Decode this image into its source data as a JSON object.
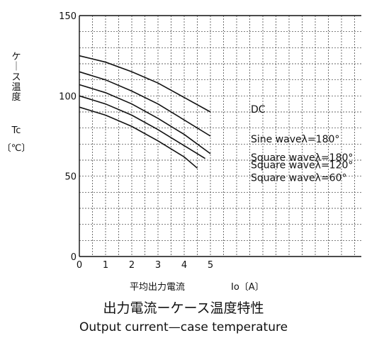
{
  "chart_data": {
    "type": "line",
    "xlabel_jp": "平均出力電流",
    "xlabel_io": "Io〔A〕",
    "ylabel_jp": [
      "ケ",
      "｜",
      "ス",
      "温",
      "度"
    ],
    "ylabel_sym": "Tc",
    "ylabel_unit": "〔℃〕",
    "caption_jp": "出力電流ーケース温度特性",
    "caption_en": "Output current—case temperature",
    "xlim": [
      0,
      5
    ],
    "ylim": [
      0,
      150
    ],
    "xticks": [
      "0",
      "1",
      "2",
      "3",
      "4",
      "5"
    ],
    "yticks": [
      "0",
      "50",
      "100",
      "150"
    ],
    "grid": true,
    "series": [
      {
        "name": "DC",
        "points": [
          [
            0,
            125
          ],
          [
            1,
            121
          ],
          [
            2,
            115
          ],
          [
            3,
            108
          ],
          [
            4,
            99
          ],
          [
            5,
            90
          ]
        ]
      },
      {
        "name": "Sine waveλ=180°",
        "points": [
          [
            0,
            115
          ],
          [
            1,
            110
          ],
          [
            2,
            103
          ],
          [
            3,
            95
          ],
          [
            4,
            85
          ],
          [
            5,
            75
          ]
        ]
      },
      {
        "name": "Square waveλ=180°",
        "points": [
          [
            0,
            107
          ],
          [
            1,
            102
          ],
          [
            2,
            95
          ],
          [
            3,
            86
          ],
          [
            4,
            76
          ],
          [
            5,
            64
          ]
        ]
      },
      {
        "name": "Square waveλ=120°",
        "points": [
          [
            0,
            100
          ],
          [
            1,
            95
          ],
          [
            2,
            88
          ],
          [
            3,
            79
          ],
          [
            4,
            69
          ],
          [
            4.8,
            61
          ]
        ]
      },
      {
        "name": "Square waveλ=60°",
        "points": [
          [
            0,
            93
          ],
          [
            1,
            88
          ],
          [
            2,
            81
          ],
          [
            3,
            72
          ],
          [
            4,
            62
          ],
          [
            4.5,
            55
          ]
        ]
      }
    ]
  }
}
